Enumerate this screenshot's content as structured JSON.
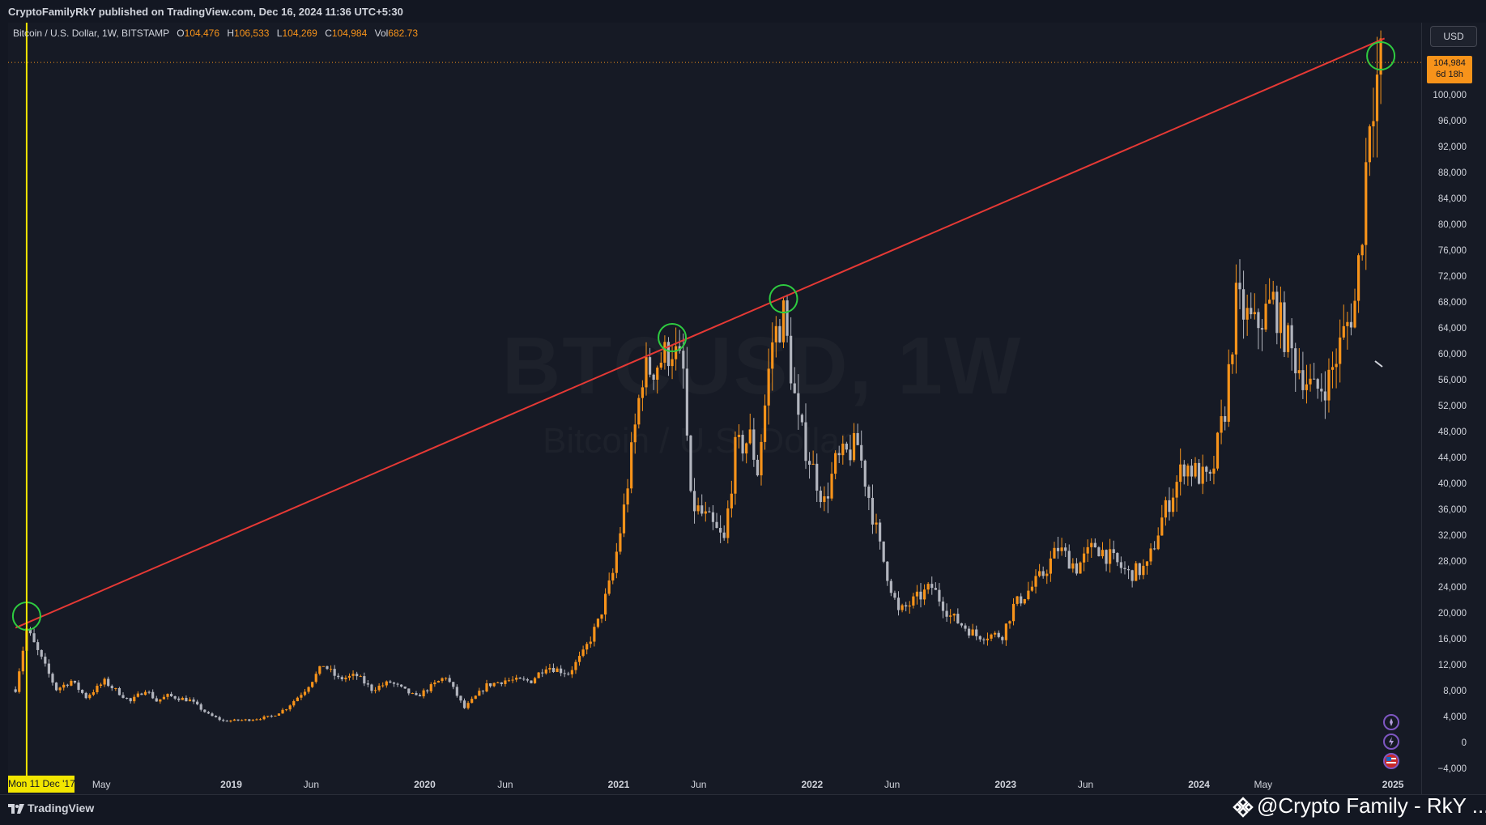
{
  "header": {
    "published": "CryptoFamilyRkY published on TradingView.com, Dec 16, 2024 11:36 UTC+5:30"
  },
  "legend": {
    "symbol": "Bitcoin / U.S. Dollar, 1W, BITSTAMP",
    "o_label": "O",
    "o_value": "104,476",
    "h_label": "H",
    "h_value": "106,533",
    "l_label": "L",
    "l_value": "104,269",
    "c_label": "C",
    "c_value": "104,984",
    "vol_label": "Vol",
    "vol_value": "682.73"
  },
  "currency_button": "USD",
  "watermark": {
    "symbol": "BTCUSD, 1W",
    "name": "Bitcoin / U.S. Dollar"
  },
  "last_price": {
    "value": "104,984",
    "countdown": "6d 18h"
  },
  "crosshair_date": "Mon 11 Dec '17",
  "footer": {
    "brand": "TradingView",
    "credit": "@Crypto Family - RkY ..."
  },
  "icons": [
    "tradingview-logo-icon",
    "compass-icon",
    "lightning-icon",
    "flag-icon",
    "binance-icon"
  ],
  "colors": {
    "up": "#f7931a",
    "down": "#b2b5be",
    "trendline": "#e53935",
    "circle": "#2ecc40",
    "crosshair": "#f2e600",
    "background": "#161a25"
  },
  "chart_data": {
    "type": "candlestick",
    "title": "BTCUSD, 1W",
    "interval": "1W",
    "x_range": [
      "2017-11-20",
      "2025-01-13"
    ],
    "ylim": [
      -4000,
      104000
    ],
    "y_ticks": [
      -4000,
      0,
      4000,
      8000,
      12000,
      16000,
      20000,
      24000,
      28000,
      32000,
      36000,
      40000,
      44000,
      48000,
      52000,
      56000,
      60000,
      64000,
      68000,
      72000,
      76000,
      80000,
      84000,
      88000,
      92000,
      96000,
      100000
    ],
    "x_ticks": [
      {
        "date": "2018-05-01",
        "label": "May"
      },
      {
        "date": "2019-01-01",
        "label": "2019"
      },
      {
        "date": "2019-06-01",
        "label": "Jun"
      },
      {
        "date": "2020-01-01",
        "label": "2020"
      },
      {
        "date": "2020-06-01",
        "label": "Jun"
      },
      {
        "date": "2021-01-01",
        "label": "2021"
      },
      {
        "date": "2021-06-01",
        "label": "Jun"
      },
      {
        "date": "2022-01-01",
        "label": "2022"
      },
      {
        "date": "2022-06-01",
        "label": "Jun"
      },
      {
        "date": "2023-01-01",
        "label": "2023"
      },
      {
        "date": "2023-06-01",
        "label": "Jun"
      },
      {
        "date": "2024-01-01",
        "label": "2024"
      },
      {
        "date": "2024-05-01",
        "label": "May"
      },
      {
        "date": "2025-01-01",
        "label": "2025"
      }
    ],
    "close_path": [
      [
        "2017-11-20",
        8200
      ],
      [
        "2017-12-11",
        17500
      ],
      [
        "2018-01-01",
        14000
      ],
      [
        "2018-02-05",
        8200
      ],
      [
        "2018-03-05",
        9500
      ],
      [
        "2018-04-02",
        7000
      ],
      [
        "2018-05-07",
        9400
      ],
      [
        "2018-06-25",
        6300
      ],
      [
        "2018-07-23",
        8200
      ],
      [
        "2018-08-13",
        6400
      ],
      [
        "2018-09-03",
        7200
      ],
      [
        "2018-10-15",
        6500
      ],
      [
        "2018-11-19",
        4300
      ],
      [
        "2018-12-17",
        3300
      ],
      [
        "2019-02-04",
        3500
      ],
      [
        "2019-03-18",
        4000
      ],
      [
        "2019-04-15",
        5300
      ],
      [
        "2019-05-20",
        8100
      ],
      [
        "2019-06-24",
        12000
      ],
      [
        "2019-07-22",
        9800
      ],
      [
        "2019-08-26",
        10300
      ],
      [
        "2019-09-23",
        8200
      ],
      [
        "2019-10-28",
        9300
      ],
      [
        "2019-12-16",
        7000
      ],
      [
        "2020-02-10",
        10200
      ],
      [
        "2020-03-16",
        5300
      ],
      [
        "2020-04-27",
        8800
      ],
      [
        "2020-06-01",
        9600
      ],
      [
        "2020-07-20",
        9500
      ],
      [
        "2020-08-17",
        11800
      ],
      [
        "2020-09-28",
        10700
      ],
      [
        "2020-10-26",
        13700
      ],
      [
        "2020-11-23",
        18500
      ],
      [
        "2020-12-21",
        26000
      ],
      [
        "2021-01-11",
        36000
      ],
      [
        "2021-02-15",
        57000
      ],
      [
        "2021-03-08",
        58000
      ],
      [
        "2021-04-12",
        61000
      ],
      [
        "2021-05-03",
        57000
      ],
      [
        "2021-05-17",
        37000
      ],
      [
        "2021-06-21",
        34000
      ],
      [
        "2021-07-19",
        31000
      ],
      [
        "2021-08-09",
        45000
      ],
      [
        "2021-09-06",
        47000
      ],
      [
        "2021-09-20",
        42000
      ],
      [
        "2021-10-18",
        62000
      ],
      [
        "2021-11-08",
        66000
      ],
      [
        "2021-12-06",
        49000
      ],
      [
        "2022-01-24",
        37000
      ],
      [
        "2022-02-14",
        43000
      ],
      [
        "2022-03-28",
        46000
      ],
      [
        "2022-05-09",
        30000
      ],
      [
        "2022-06-13",
        20000
      ],
      [
        "2022-08-15",
        24000
      ],
      [
        "2022-09-19",
        19500
      ],
      [
        "2022-11-07",
        16500
      ],
      [
        "2022-12-26",
        16600
      ],
      [
        "2023-01-16",
        21000
      ],
      [
        "2023-02-20",
        24000
      ],
      [
        "2023-03-13",
        26000
      ],
      [
        "2023-04-10",
        30000
      ],
      [
        "2023-05-15",
        27000
      ],
      [
        "2023-06-19",
        30500
      ],
      [
        "2023-08-21",
        26000
      ],
      [
        "2023-09-25",
        27000
      ],
      [
        "2023-10-23",
        34500
      ],
      [
        "2023-12-04",
        43000
      ],
      [
        "2024-01-22",
        40000
      ],
      [
        "2024-02-19",
        51500
      ],
      [
        "2024-03-11",
        68000
      ],
      [
        "2024-04-15",
        64000
      ],
      [
        "2024-05-20",
        68000
      ],
      [
        "2024-06-24",
        60000
      ],
      [
        "2024-08-05",
        54000
      ],
      [
        "2024-09-02",
        56000
      ],
      [
        "2024-09-30",
        63000
      ],
      [
        "2024-10-21",
        68000
      ],
      [
        "2024-11-04",
        80000
      ],
      [
        "2024-11-18",
        98000
      ],
      [
        "2024-12-09",
        104984
      ]
    ],
    "annotations": [
      {
        "type": "trendline",
        "color": "#e53935",
        "points": [
          [
            "2017-11-20",
            17700
          ],
          [
            "2024-12-16",
            108700
          ]
        ]
      },
      {
        "type": "circle",
        "date": "2017-12-11",
        "price": 19500
      },
      {
        "type": "circle",
        "date": "2021-04-12",
        "price": 62500
      },
      {
        "type": "circle",
        "date": "2021-11-08",
        "price": 68500
      },
      {
        "type": "circle",
        "date": "2024-12-09",
        "price": 106000
      },
      {
        "type": "vertical_line",
        "date": "2017-12-11",
        "color": "#f2e600"
      },
      {
        "type": "horizontal_line",
        "price": 104984,
        "style": "dotted",
        "color": "#f7931a"
      }
    ],
    "last_price": 104984,
    "grid": false
  }
}
